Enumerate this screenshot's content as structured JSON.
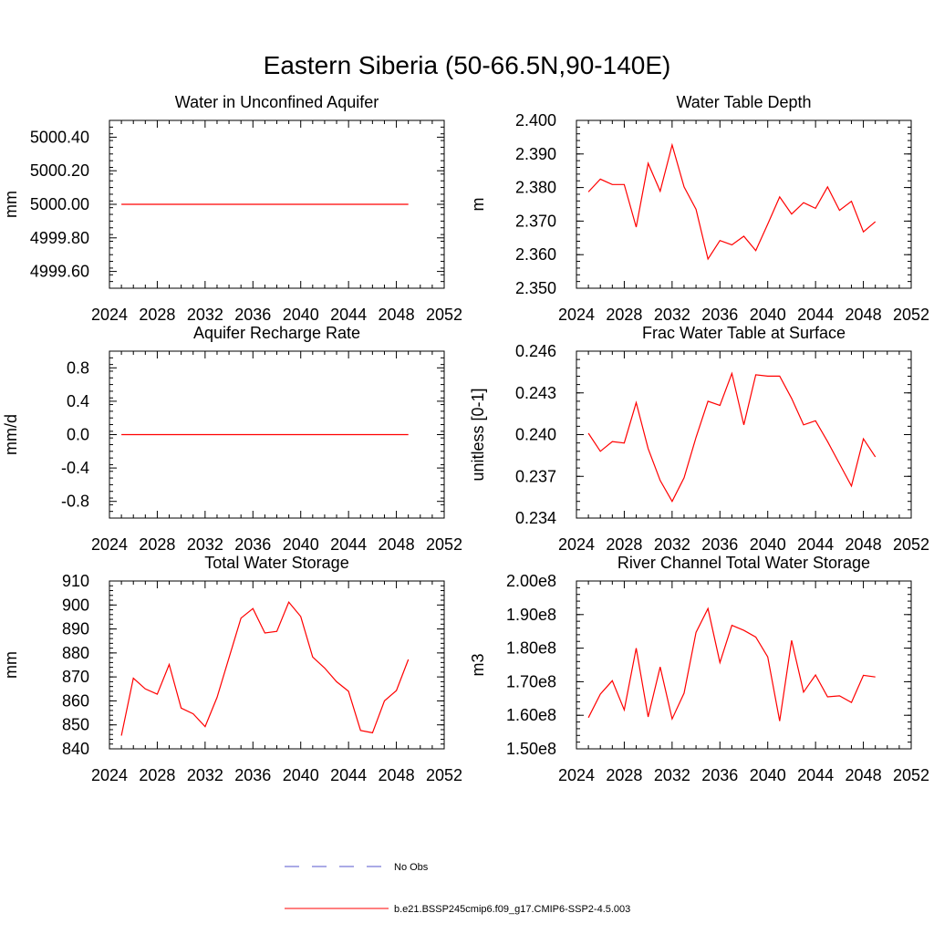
{
  "figure_title": "Eastern Siberia (50-66.5N,90-140E)",
  "legend": {
    "items": [
      {
        "label": "No Obs",
        "color": "#5555cc",
        "style": "dashed"
      },
      {
        "label": "b.e21.BSSP245cmip6.f09_g17.CMIP6-SSP2-4.5.003",
        "color": "#ff0000",
        "style": "solid"
      }
    ]
  },
  "chart_data": [
    {
      "type": "line",
      "title": "Water in Unconfined Aquifer",
      "xlabel": "",
      "ylabel": "mm",
      "xlim": [
        2024,
        2052
      ],
      "xticks": [
        2024,
        2028,
        2032,
        2036,
        2040,
        2044,
        2048,
        2052
      ],
      "ylim": [
        4999.5,
        5000.5
      ],
      "yticks": [
        4999.6,
        4999.8,
        5000.0,
        5000.2,
        5000.4
      ],
      "ytick_labels": [
        "4999.60",
        "4999.80",
        "5000.00",
        "5000.20",
        "5000.40"
      ],
      "x": [
        2025,
        2026,
        2027,
        2028,
        2029,
        2030,
        2031,
        2032,
        2033,
        2034,
        2035,
        2036,
        2037,
        2038,
        2039,
        2040,
        2041,
        2042,
        2043,
        2044,
        2045,
        2046,
        2047,
        2048,
        2049
      ],
      "series": [
        {
          "color": "#ff0000",
          "values": [
            5000,
            5000,
            5000,
            5000,
            5000,
            5000,
            5000,
            5000,
            5000,
            5000,
            5000,
            5000,
            5000,
            5000,
            5000,
            5000,
            5000,
            5000,
            5000,
            5000,
            5000,
            5000,
            5000,
            5000,
            5000
          ]
        }
      ]
    },
    {
      "type": "line",
      "title": "Water Table Depth",
      "xlabel": "",
      "ylabel": "m",
      "xlim": [
        2024,
        2052
      ],
      "xticks": [
        2024,
        2028,
        2032,
        2036,
        2040,
        2044,
        2048,
        2052
      ],
      "ylim": [
        2.35,
        2.4
      ],
      "yticks": [
        2.35,
        2.36,
        2.37,
        2.38,
        2.39,
        2.4
      ],
      "ytick_labels": [
        "2.350",
        "2.360",
        "2.370",
        "2.380",
        "2.390",
        "2.400"
      ],
      "x": [
        2025,
        2026,
        2027,
        2028,
        2029,
        2030,
        2031,
        2032,
        2033,
        2034,
        2035,
        2036,
        2037,
        2038,
        2039,
        2040,
        2041,
        2042,
        2043,
        2044,
        2045,
        2046,
        2047,
        2048,
        2049
      ],
      "series": [
        {
          "color": "#ff0000",
          "values": [
            2.3787,
            2.3825,
            2.3809,
            2.3809,
            2.3682,
            2.3872,
            2.3789,
            2.3927,
            2.3802,
            2.3735,
            2.3587,
            2.3642,
            2.3629,
            2.3655,
            2.3612,
            2.3691,
            2.3772,
            2.3721,
            2.3755,
            2.3738,
            2.3802,
            2.3732,
            2.3759,
            2.3668,
            2.3698
          ]
        }
      ]
    },
    {
      "type": "line",
      "title": "Aquifer Recharge Rate",
      "xlabel": "",
      "ylabel": "mm/d",
      "xlim": [
        2024,
        2052
      ],
      "xticks": [
        2024,
        2028,
        2032,
        2036,
        2040,
        2044,
        2048,
        2052
      ],
      "ylim": [
        -1.0,
        1.0
      ],
      "yticks": [
        -0.8,
        -0.4,
        0.0,
        0.4,
        0.8
      ],
      "ytick_labels": [
        "-0.8",
        "-0.4",
        "0.0",
        "0.4",
        "0.8"
      ],
      "x": [
        2025,
        2026,
        2027,
        2028,
        2029,
        2030,
        2031,
        2032,
        2033,
        2034,
        2035,
        2036,
        2037,
        2038,
        2039,
        2040,
        2041,
        2042,
        2043,
        2044,
        2045,
        2046,
        2047,
        2048,
        2049
      ],
      "series": [
        {
          "color": "#ff0000",
          "values": [
            0,
            0,
            0,
            0,
            0,
            0,
            0,
            0,
            0,
            0,
            0,
            0,
            0,
            0,
            0,
            0,
            0,
            0,
            0,
            0,
            0,
            0,
            0,
            0,
            0
          ]
        }
      ]
    },
    {
      "type": "line",
      "title": "Frac Water Table at Surface",
      "xlabel": "",
      "ylabel": "unitless [0-1]",
      "xlim": [
        2024,
        2052
      ],
      "xticks": [
        2024,
        2028,
        2032,
        2036,
        2040,
        2044,
        2048,
        2052
      ],
      "ylim": [
        0.234,
        0.246
      ],
      "yticks": [
        0.234,
        0.237,
        0.24,
        0.243,
        0.246
      ],
      "ytick_labels": [
        "0.234",
        "0.237",
        "0.240",
        "0.243",
        "0.246"
      ],
      "x": [
        2025,
        2026,
        2027,
        2028,
        2029,
        2030,
        2031,
        2032,
        2033,
        2034,
        2035,
        2036,
        2037,
        2038,
        2039,
        2040,
        2041,
        2042,
        2043,
        2044,
        2045,
        2046,
        2047,
        2048,
        2049
      ],
      "series": [
        {
          "color": "#ff0000",
          "values": [
            0.2401,
            0.2388,
            0.2395,
            0.2394,
            0.2423,
            0.239,
            0.2367,
            0.2352,
            0.2369,
            0.2398,
            0.2424,
            0.2421,
            0.2444,
            0.2407,
            0.2443,
            0.2442,
            0.2442,
            0.2426,
            0.2407,
            0.241,
            0.2395,
            0.2379,
            0.2363,
            0.2397,
            0.2384
          ]
        }
      ]
    },
    {
      "type": "line",
      "title": "Total Water Storage",
      "xlabel": "",
      "ylabel": "mm",
      "xlim": [
        2024,
        2052
      ],
      "xticks": [
        2024,
        2028,
        2032,
        2036,
        2040,
        2044,
        2048,
        2052
      ],
      "ylim": [
        840,
        910
      ],
      "yticks": [
        840,
        850,
        860,
        870,
        880,
        890,
        900,
        910
      ],
      "ytick_labels": [
        "840",
        "850",
        "860",
        "870",
        "880",
        "890",
        "900",
        "910"
      ],
      "x": [
        2025,
        2026,
        2027,
        2028,
        2029,
        2030,
        2031,
        2032,
        2033,
        2034,
        2035,
        2036,
        2037,
        2038,
        2039,
        2040,
        2041,
        2042,
        2043,
        2044,
        2045,
        2046,
        2047,
        2048,
        2049
      ],
      "series": [
        {
          "color": "#ff0000",
          "values": [
            845.5,
            869.5,
            865,
            862.8,
            875.2,
            857,
            854.6,
            849.3,
            861.5,
            878,
            894.5,
            898.5,
            888.3,
            889,
            901.2,
            895.2,
            878.3,
            873.7,
            868,
            864,
            847.7,
            846.7,
            860,
            864.3,
            877.3
          ]
        }
      ]
    },
    {
      "type": "line",
      "title": "River Channel Total Water Storage",
      "xlabel": "",
      "ylabel": "m3",
      "xlim": [
        2024,
        2052
      ],
      "xticks": [
        2024,
        2028,
        2032,
        2036,
        2040,
        2044,
        2048,
        2052
      ],
      "ylim": [
        150000000,
        200000000
      ],
      "yticks": [
        150000000,
        160000000,
        170000000,
        180000000,
        190000000,
        200000000
      ],
      "ytick_labels": [
        "1.50e8",
        "1.60e8",
        "1.70e8",
        "1.80e8",
        "1.90e8",
        "2.00e8"
      ],
      "x": [
        2025,
        2026,
        2027,
        2028,
        2029,
        2030,
        2031,
        2032,
        2033,
        2034,
        2035,
        2036,
        2037,
        2038,
        2039,
        2040,
        2041,
        2042,
        2043,
        2044,
        2045,
        2046,
        2047,
        2048,
        2049
      ],
      "series": [
        {
          "color": "#ff0000",
          "values": [
            159300000,
            166300000,
            170300000,
            161600000,
            180000000,
            159500000,
            174400000,
            158900000,
            166600000,
            184700000,
            191800000,
            175700000,
            186800000,
            185300000,
            183300000,
            177400000,
            158300000,
            182300000,
            166900000,
            172000000,
            165500000,
            165800000,
            163800000,
            171900000,
            171400000
          ]
        }
      ]
    }
  ]
}
